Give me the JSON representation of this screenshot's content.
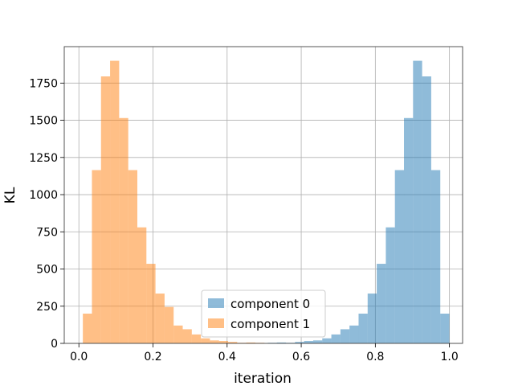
{
  "chart_data": {
    "type": "bar",
    "subtype": "overlaid-histogram",
    "xlabel": "iteration",
    "ylabel": "KL",
    "xlim": [
      -0.0395,
      1.0355
    ],
    "ylim": [
      0,
      1995
    ],
    "xticks": [
      0.0,
      0.2,
      0.4,
      0.6,
      0.8,
      1.0
    ],
    "xtick_labels": [
      "0.0",
      "0.2",
      "0.4",
      "0.6",
      "0.8",
      "1.0"
    ],
    "yticks": [
      0,
      250,
      500,
      750,
      1000,
      1250,
      1500,
      1750
    ],
    "ytick_labels": [
      "0",
      "250",
      "500",
      "750",
      "1000",
      "1250",
      "1500",
      "1750"
    ],
    "grid": true,
    "legend_position": "lower-center",
    "bin_width": 0.0245,
    "series": [
      {
        "name": "component 0",
        "color": "#1f77b4",
        "alpha": 0.5,
        "bin_start": 0.5098,
        "values": [
          4,
          6,
          4,
          10,
          16,
          20,
          34,
          60,
          95,
          120,
          200,
          335,
          535,
          780,
          1165,
          1515,
          1900,
          1795,
          1165,
          200
        ]
      },
      {
        "name": "component 1",
        "color": "#ff7f0e",
        "alpha": 0.5,
        "bin_start": 0.0107,
        "values": [
          200,
          1165,
          1795,
          1900,
          1515,
          1165,
          780,
          535,
          335,
          245,
          120,
          95,
          60,
          34,
          20,
          16,
          10,
          4,
          6,
          4
        ]
      }
    ]
  }
}
